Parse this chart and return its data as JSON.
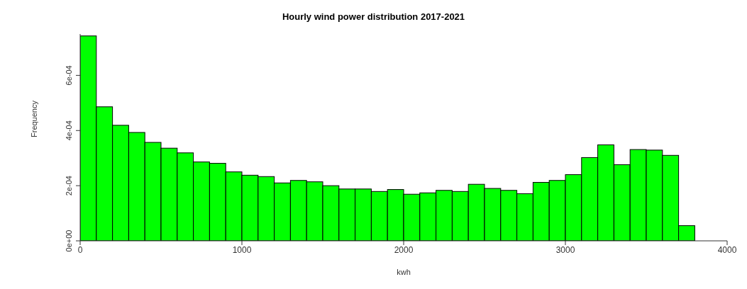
{
  "chart_data": {
    "type": "histogram",
    "title": "Hourly wind power distribution 2017-2021",
    "xlabel": "kwh",
    "ylabel": "Frequency",
    "bins": [
      0,
      100,
      200,
      300,
      400,
      500,
      600,
      700,
      800,
      900,
      1000,
      1100,
      1200,
      1300,
      1400,
      1500,
      1600,
      1700,
      1800,
      1900,
      2000,
      2100,
      2200,
      2300,
      2400,
      2500,
      2600,
      2700,
      2800,
      2900,
      3000,
      3100,
      3200,
      3300,
      3400,
      3500,
      3600,
      3700,
      3800
    ],
    "values": [
      0.000743,
      0.000486,
      0.000419,
      0.000393,
      0.000357,
      0.000336,
      0.000319,
      0.000286,
      0.000281,
      0.00025,
      0.000238,
      0.000233,
      0.00021,
      0.000219,
      0.000214,
      0.0002,
      0.000188,
      0.000188,
      0.000179,
      0.000186,
      0.000169,
      0.000174,
      0.000183,
      0.000179,
      0.000205,
      0.00019,
      0.000183,
      0.000171,
      0.000212,
      0.000219,
      0.00024,
      0.000302,
      0.000348,
      0.000276,
      0.000331,
      0.000329,
      0.00031,
      5.5e-05
    ],
    "color": "#00ff00",
    "xlim": [
      0,
      4000
    ],
    "xticks": [
      0,
      1000,
      2000,
      3000,
      4000
    ],
    "ylim": [
      0,
      0.00075
    ],
    "yticks": [
      {
        "value": 0,
        "label": "0e+00"
      },
      {
        "value": 0.0002,
        "label": "2e-04"
      },
      {
        "value": 0.0004,
        "label": "4e-04"
      },
      {
        "value": 0.0006,
        "label": "6e-04"
      }
    ],
    "grid": false,
    "legend": false
  }
}
